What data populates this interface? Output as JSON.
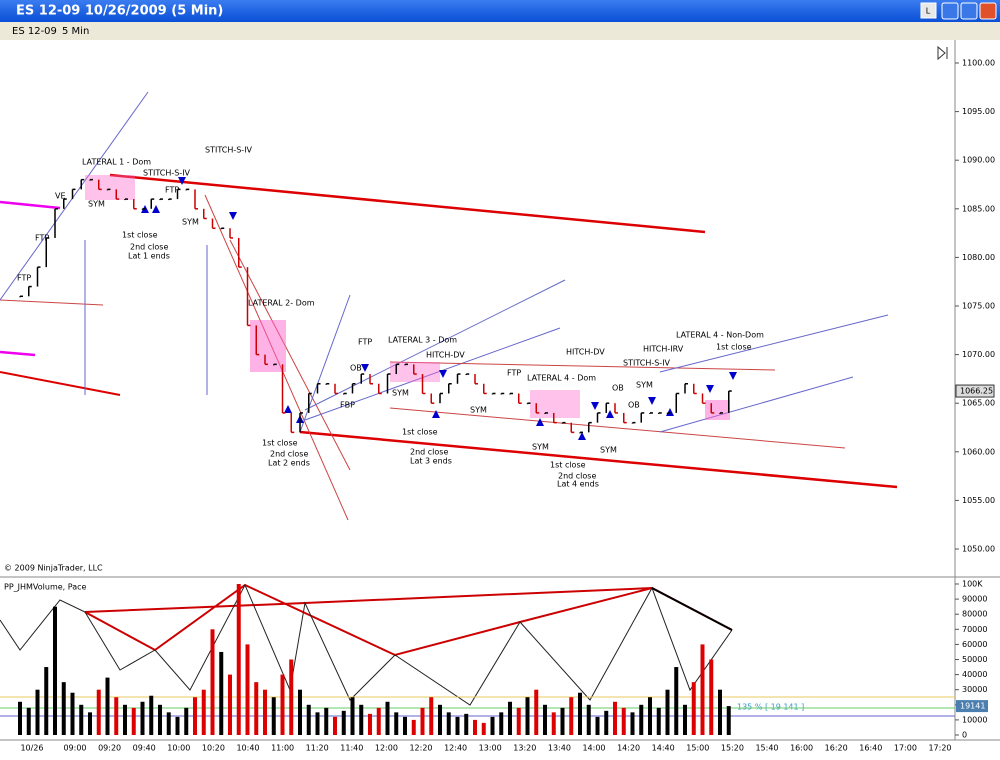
{
  "window": {
    "title": "ES 12-09  10/26/2009 (5 Min)",
    "button": "L"
  },
  "toolbar": {
    "instrument": "ES 12-09",
    "period": "5 Min"
  },
  "price_panel": {
    "copyright": "© 2009 NinjaTrader, LLC",
    "last_price": {
      "value": 1066.25,
      "label": "1066.25"
    },
    "ticks": [
      {
        "value": 1050,
        "label": "1050.00"
      },
      {
        "value": 1055,
        "label": "1055.00"
      },
      {
        "value": 1060,
        "label": "1060.00"
      },
      {
        "value": 1065,
        "label": "1065.00"
      },
      {
        "value": 1070,
        "label": "1070.00"
      },
      {
        "value": 1075,
        "label": "1075.00"
      },
      {
        "value": 1080,
        "label": "1080.00"
      },
      {
        "value": 1085,
        "label": "1085.00"
      },
      {
        "value": 1090,
        "label": "1090.00"
      },
      {
        "value": 1095,
        "label": "1095.00"
      },
      {
        "value": 1100,
        "label": "1100.00"
      }
    ],
    "closes": [
      1076,
      1077,
      1079,
      1082,
      1085,
      1086,
      1087,
      1088,
      1088,
      1087,
      1087,
      1086,
      1086,
      1085,
      1085,
      1086,
      1086,
      1086,
      1087,
      1087,
      1085,
      1084,
      1083,
      1083,
      1082,
      1079,
      1073,
      1070,
      1069,
      1069,
      1064,
      1062,
      1064,
      1066,
      1067,
      1067,
      1066,
      1066,
      1067,
      1068,
      1067,
      1066,
      1068,
      1069,
      1069,
      1068,
      1066,
      1065,
      1066,
      1067,
      1068,
      1068,
      1067,
      1066,
      1066,
      1066,
      1066,
      1065,
      1065,
      1064,
      1064,
      1063,
      1063,
      1062,
      1062,
      1063,
      1064,
      1065,
      1064,
      1063,
      1063,
      1064,
      1064,
      1064,
      1064,
      1066,
      1067,
      1066,
      1065,
      1064,
      1064,
      1066.25
    ],
    "annotations": [
      "LATERAL 1 - Dom",
      "STITCH-S-IV",
      "STITCH-S-IV",
      "VE",
      "SYM",
      "FTP",
      "SYM",
      "FTP",
      "FTP",
      "1st close",
      "2nd close",
      "Lat 1 ends",
      "LATERAL 2- Dom",
      "1st close",
      "2nd close",
      "Lat 2 ends",
      "FTP",
      "OB",
      "FBP",
      "LATERAL 3 - Dom",
      "SYM",
      "HITCH-DV",
      "1st close",
      "2nd close",
      "Lat 3 ends",
      "SYM",
      "FTP",
      "LATERAL 4 - Dom",
      "SYM",
      "HITCH-DV",
      "1st close",
      "2nd close",
      "Lat 4 ends",
      "SYM",
      "OB",
      "STITCH-S-IV",
      "HITCH-IRV",
      "SYM",
      "OB",
      "LATERAL 4 - Non-Dom",
      "1st close"
    ]
  },
  "volume_panel": {
    "indicator": "PP_JHMVolume, Pace",
    "pace": "135 % [ 19 141 ]",
    "last_volume": 19141,
    "ticks": [
      0,
      {
        "value": 10000,
        "label": "10000"
      },
      {
        "value": 20000,
        "label": "20000"
      },
      {
        "value": 30000,
        "label": "30000"
      },
      {
        "value": 40000,
        "label": "40000"
      },
      {
        "value": 50000,
        "label": "50000"
      },
      {
        "value": 60000,
        "label": "60000"
      },
      {
        "value": 70000,
        "label": "70000"
      },
      {
        "value": 80000,
        "label": "80000"
      },
      {
        "value": 90000,
        "label": "90000"
      },
      {
        "value": 100000,
        "label": "100K"
      }
    ],
    "volumes": [
      22000,
      18000,
      30000,
      45000,
      85000,
      35000,
      28000,
      20000,
      15000,
      30000,
      38000,
      25000,
      20000,
      18000,
      22000,
      26000,
      20000,
      15000,
      12000,
      18000,
      25000,
      30000,
      70000,
      55000,
      40000,
      100000,
      60000,
      35000,
      30000,
      25000,
      40000,
      50000,
      30000,
      20000,
      15000,
      18000,
      12000,
      16000,
      25000,
      20000,
      14000,
      18000,
      22000,
      15000,
      12000,
      10000,
      18000,
      25000,
      20000,
      15000,
      12000,
      14000,
      10000,
      8000,
      12000,
      15000,
      22000,
      18000,
      25000,
      30000,
      20000,
      15000,
      18000,
      25000,
      28000,
      20000,
      12000,
      16000,
      22000,
      18000,
      15000,
      20000,
      25000,
      18000,
      30000,
      45000,
      20000,
      35000,
      60000,
      50000,
      30000,
      19141
    ]
  },
  "time_axis": {
    "labels": [
      "10/26",
      "09:00",
      "09:20",
      "09:40",
      "10:00",
      "10:20",
      "10:40",
      "11:00",
      "11:20",
      "11:40",
      "12:00",
      "12:20",
      "12:40",
      "13:00",
      "13:20",
      "13:40",
      "14:00",
      "14:20",
      "14:40",
      "15:00",
      "15:20",
      "15:40",
      "16:00",
      "16:20",
      "16:40",
      "17:00",
      "17:20"
    ]
  }
}
